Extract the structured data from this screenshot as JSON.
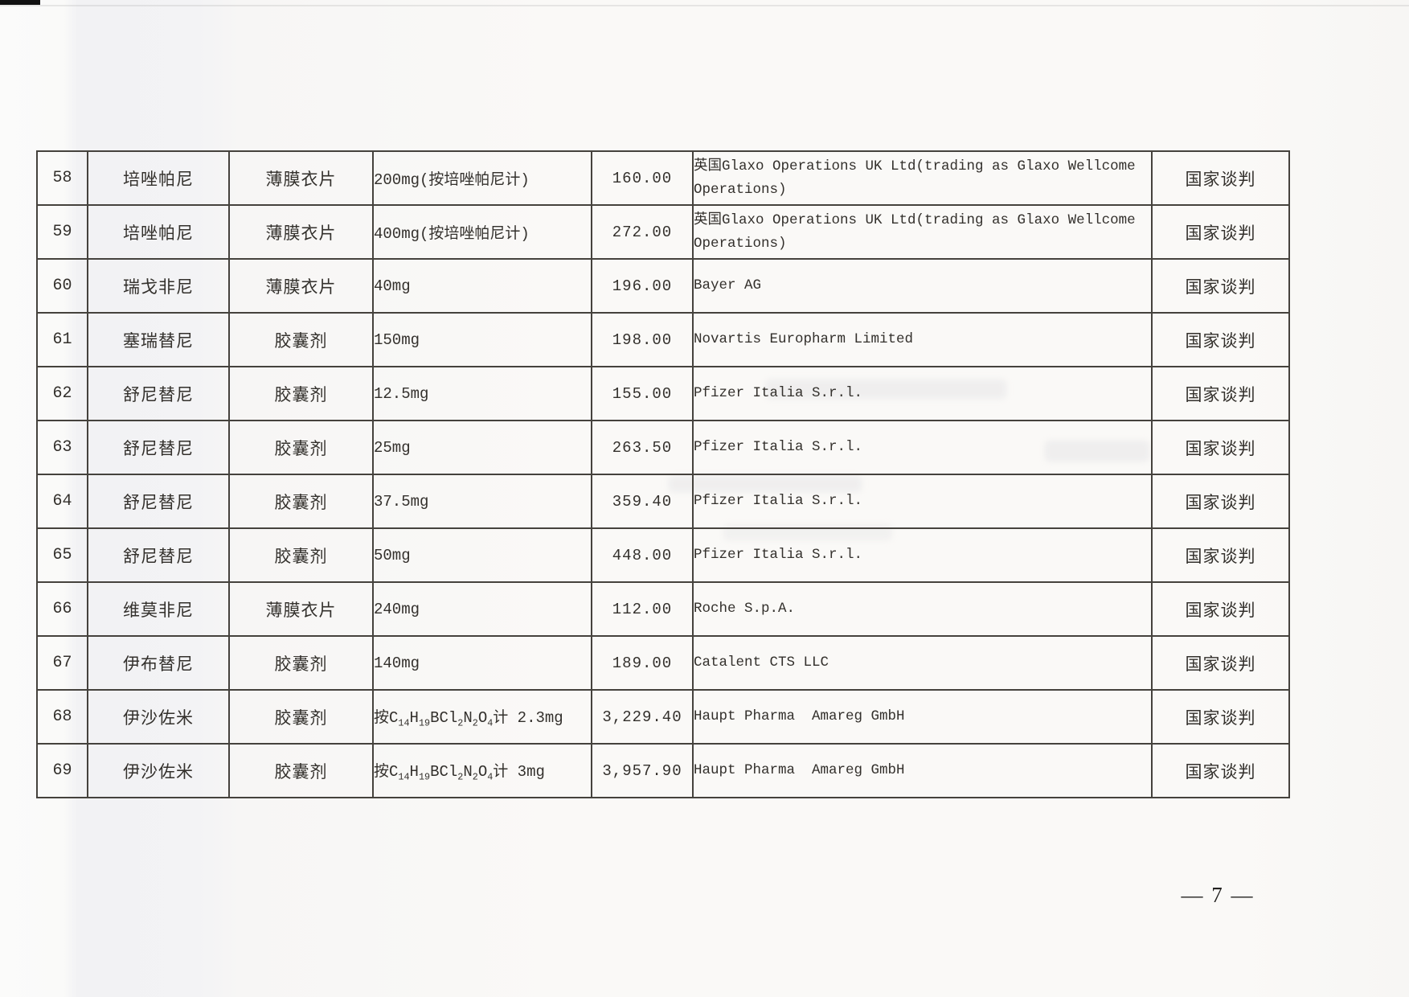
{
  "page": {
    "number_label": "— 7 —"
  },
  "colors": {
    "ink": "#33302c",
    "table_border": "#45423d",
    "paper": "#faf9f7"
  },
  "table": {
    "rows": [
      {
        "no": "58",
        "name": "培唑帕尼",
        "form": "薄膜衣片",
        "spec": "200mg(按培唑帕尼计)",
        "price": "160.00",
        "manufacturer": "英国Glaxo Operations UK Ltd(trading as Glaxo Wellcome\nOperations)",
        "category": "国家谈判"
      },
      {
        "no": "59",
        "name": "培唑帕尼",
        "form": "薄膜衣片",
        "spec": "400mg(按培唑帕尼计)",
        "price": "272.00",
        "manufacturer": "英国Glaxo Operations UK Ltd(trading as Glaxo Wellcome\nOperations)",
        "category": "国家谈判"
      },
      {
        "no": "60",
        "name": "瑞戈非尼",
        "form": "薄膜衣片",
        "spec": "40mg",
        "price": "196.00",
        "manufacturer": "Bayer AG",
        "category": "国家谈判"
      },
      {
        "no": "61",
        "name": "塞瑞替尼",
        "form": "胶囊剂",
        "spec": "150mg",
        "price": "198.00",
        "manufacturer": "Novartis Europharm Limited",
        "category": "国家谈判"
      },
      {
        "no": "62",
        "name": "舒尼替尼",
        "form": "胶囊剂",
        "spec": "12.5mg",
        "price": "155.00",
        "manufacturer": "Pfizer Italia S.r.l.",
        "category": "国家谈判"
      },
      {
        "no": "63",
        "name": "舒尼替尼",
        "form": "胶囊剂",
        "spec": "25mg",
        "price": "263.50",
        "manufacturer": "Pfizer Italia S.r.l.",
        "category": "国家谈判"
      },
      {
        "no": "64",
        "name": "舒尼替尼",
        "form": "胶囊剂",
        "spec": "37.5mg",
        "price": "359.40",
        "manufacturer": "Pfizer Italia S.r.l.",
        "category": "国家谈判"
      },
      {
        "no": "65",
        "name": "舒尼替尼",
        "form": "胶囊剂",
        "spec": "50mg",
        "price": "448.00",
        "manufacturer": "Pfizer Italia S.r.l.",
        "category": "国家谈判"
      },
      {
        "no": "66",
        "name": "维莫非尼",
        "form": "薄膜衣片",
        "spec": "240mg",
        "price": "112.00",
        "manufacturer": "Roche S.p.A.",
        "category": "国家谈判"
      },
      {
        "no": "67",
        "name": "伊布替尼",
        "form": "胶囊剂",
        "spec": "140mg",
        "price": "189.00",
        "manufacturer": "Catalent CTS LLC",
        "category": "国家谈判"
      },
      {
        "no": "68",
        "name": "伊沙佐米",
        "form": "胶囊剂",
        "spec": "按C~14~H~19~BCl~2~N~2~O~4~计 2.3mg",
        "price": "3,229.40",
        "manufacturer": "Haupt Pharma  Amareg GmbH",
        "category": "国家谈判"
      },
      {
        "no": "69",
        "name": "伊沙佐米",
        "form": "胶囊剂",
        "spec": "按C~14~H~19~BCl~2~N~2~O~4~计 3mg",
        "price": "3,957.90",
        "manufacturer": "Haupt Pharma  Amareg GmbH",
        "category": "国家谈判"
      }
    ]
  }
}
